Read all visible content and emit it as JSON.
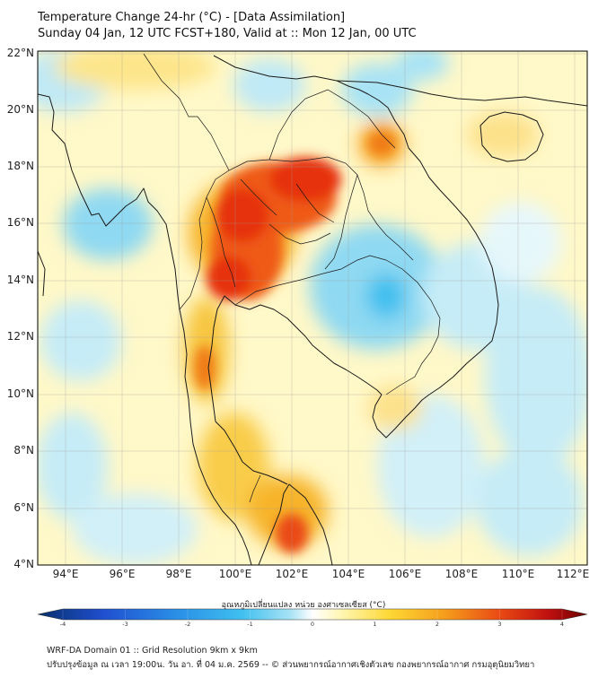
{
  "header": {
    "title_line1": "Temperature Change 24-hr (°C) - [Data Assimilation]",
    "title_line2": "Sunday 04 Jan, 12 UTC FCST+180, Valid at :: Mon 12 Jan, 00 UTC"
  },
  "map": {
    "lat_labels": [
      "22°N",
      "20°N",
      "18°N",
      "16°N",
      "14°N",
      "12°N",
      "10°N",
      "8°N",
      "6°N",
      "4°N"
    ],
    "lon_labels": [
      "94°E",
      "96°E",
      "98°E",
      "100°E",
      "102°E",
      "104°E",
      "106°E",
      "108°E",
      "110°E",
      "112°E"
    ],
    "lat_range": [
      4,
      22.3
    ],
    "lon_range": [
      93,
      112.4
    ]
  },
  "colorbar": {
    "label": "อุณหภูมิเปลี่ยนแปลง หน่วย องศาเซลเซียส (°C)",
    "ticks": [
      "-4",
      "-3",
      "-2",
      "-1",
      "0",
      "1",
      "2",
      "3",
      "4"
    ],
    "min": -4,
    "max": 4,
    "colors": [
      "#08306b",
      "#1f4fd0",
      "#2a8ee6",
      "#3fbfef",
      "#a8e3f5",
      "#ffffff",
      "#fff4a8",
      "#fdd834",
      "#f59e1c",
      "#ea4a14",
      "#c01010",
      "#6b0000"
    ]
  },
  "footer": {
    "line1": "WRF-DA Domain 01 :: Grid Resolution 9km x 9km",
    "line2": "ปรับปรุงข้อมูล ณ เวลา 19:00น. วัน อา. ที่ 04 ม.ค. 2569 -- © ส่วนพยากรณ์อากาศเชิงตัวเลข กองพยากรณ์อากาศ กรมอุตุนิยมวิทยา"
  }
}
